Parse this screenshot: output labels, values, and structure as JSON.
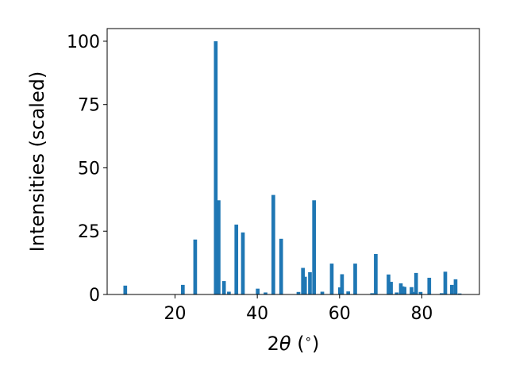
{
  "chart_data": {
    "type": "bar",
    "xlabel_parts": [
      "2",
      "θ",
      " (",
      "∘",
      ")"
    ],
    "ylabel": "Intensities (scaled)",
    "xlim": [
      3.5,
      94
    ],
    "ylim": [
      0,
      105
    ],
    "xticks": [
      20,
      40,
      60,
      80
    ],
    "yticks": [
      0,
      25,
      50,
      75,
      100
    ],
    "grid": false,
    "legend": "none",
    "bar_width": 0.9,
    "bar_color": "#1f77b4",
    "x": [
      7.9,
      21.9,
      24.9,
      29.9,
      30.6,
      31.9,
      33.1,
      34.9,
      36.5,
      40.1,
      42.0,
      43.9,
      45.8,
      50.0,
      51.1,
      51.6,
      52.8,
      53.8,
      55.8,
      58.1,
      60.1,
      60.6,
      62.1,
      63.8,
      67.9,
      68.8,
      71.9,
      72.5,
      73.9,
      74.9,
      75.3,
      75.8,
      77.5,
      78.1,
      78.6,
      79.7,
      81.8,
      84.8,
      85.7,
      87.3,
      88.2,
      89.2
    ],
    "values": [
      3.5,
      3.8,
      21.7,
      100,
      37.2,
      5.3,
      1.1,
      27.6,
      24.5,
      2.3,
      0.8,
      39.3,
      22.0,
      1.0,
      10.5,
      7.0,
      8.8,
      37.2,
      1.1,
      12.2,
      2.8,
      8.0,
      1.2,
      12.2,
      0.5,
      16.0,
      7.9,
      5.0,
      0.8,
      4.4,
      3.2,
      3.0,
      2.9,
      1.0,
      8.5,
      1.0,
      6.6,
      0.5,
      9.0,
      3.8,
      6.0,
      0.4
    ]
  }
}
